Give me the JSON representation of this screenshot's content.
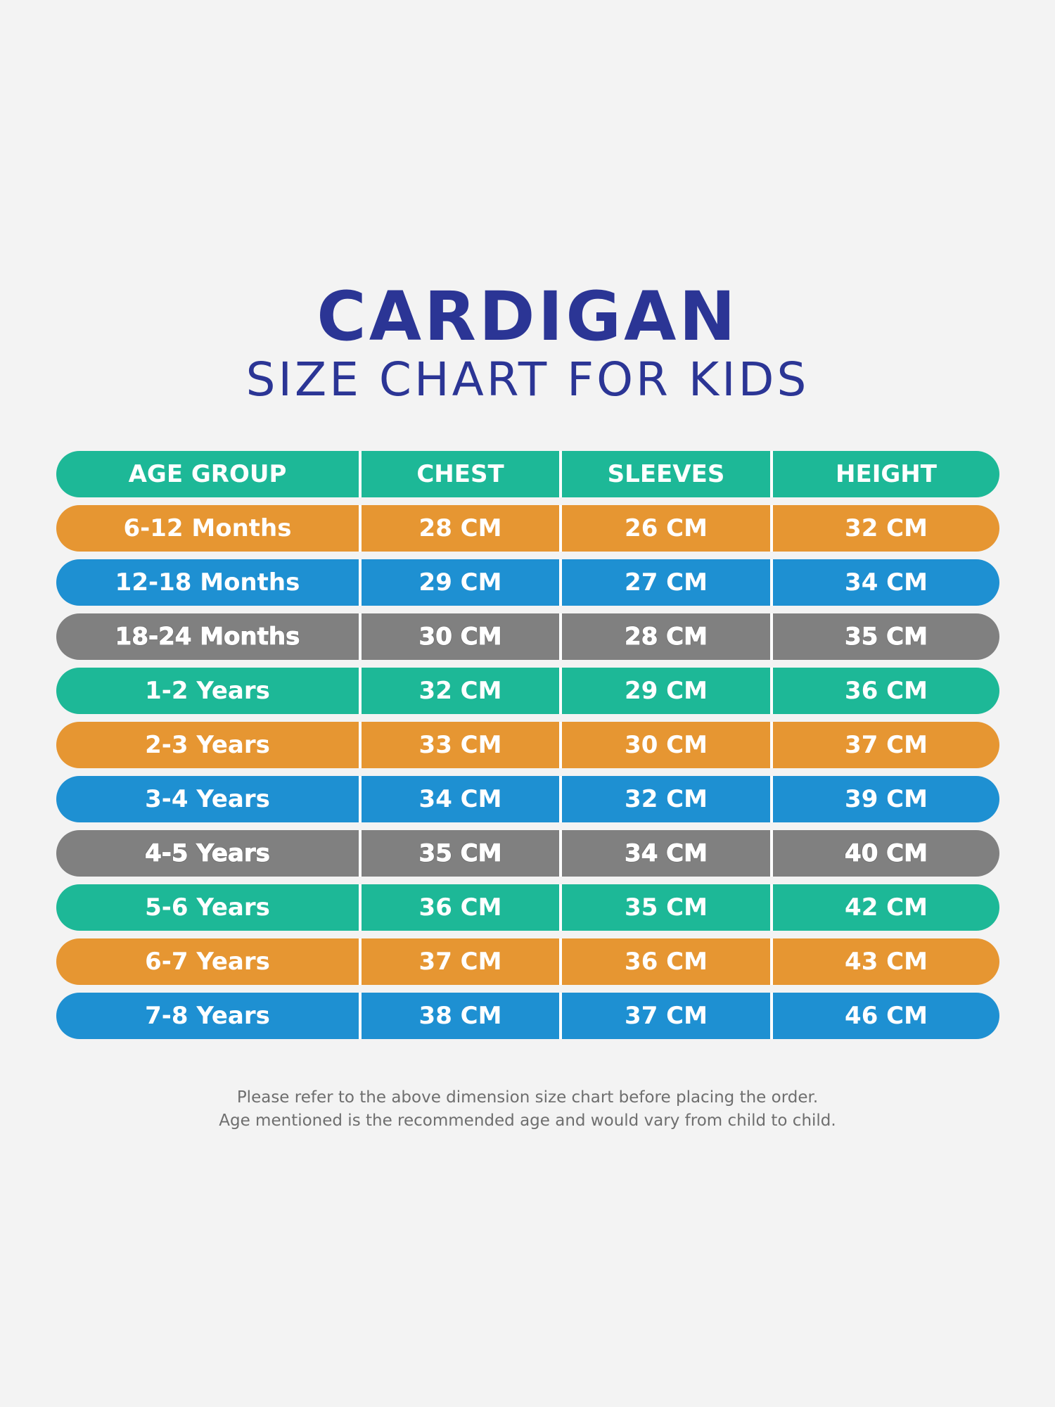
{
  "title": "CARDIGAN",
  "subtitle": "SIZE CHART FOR KIDS",
  "colors": {
    "teal": "#1db897",
    "orange": "#e69632",
    "blue": "#1e90d2",
    "gray": "#808080",
    "title": "#2b3595"
  },
  "table": {
    "header": {
      "color": "#1db897",
      "cells": [
        "AGE GROUP",
        "CHEST",
        "SLEEVES",
        "HEIGHT"
      ]
    },
    "rows": [
      {
        "color": "#e69632",
        "outlined": false,
        "cells": [
          "6-12 Months",
          "28 CM",
          "26 CM",
          "32 CM"
        ]
      },
      {
        "color": "#1e90d2",
        "outlined": false,
        "cells": [
          "12-18 Months",
          "29 CM",
          "27 CM",
          "34 CM"
        ]
      },
      {
        "color": "#808080",
        "outlined": true,
        "cells": [
          "18-24 Months",
          "30 CM",
          "28 CM",
          "35 CM"
        ]
      },
      {
        "color": "#1db897",
        "outlined": false,
        "cells": [
          "1-2 Years",
          "32 CM",
          "29 CM",
          "36 CM"
        ]
      },
      {
        "color": "#e69632",
        "outlined": false,
        "cells": [
          "2-3 Years",
          "33 CM",
          "30 CM",
          "37 CM"
        ]
      },
      {
        "color": "#1e90d2",
        "outlined": false,
        "cells": [
          "3-4 Years",
          "34 CM",
          "32 CM",
          "39 CM"
        ]
      },
      {
        "color": "#808080",
        "outlined": true,
        "cells": [
          "4-5 Years",
          "35 CM",
          "34 CM",
          "40 CM"
        ]
      },
      {
        "color": "#1db897",
        "outlined": false,
        "cells": [
          "5-6 Years",
          "36 CM",
          "35 CM",
          "42 CM"
        ]
      },
      {
        "color": "#e69632",
        "outlined": false,
        "cells": [
          "6-7 Years",
          "37 CM",
          "36 CM",
          "43 CM"
        ]
      },
      {
        "color": "#1e90d2",
        "outlined": false,
        "cells": [
          "7-8 Years",
          "38 CM",
          "37 CM",
          "46 CM"
        ]
      }
    ]
  },
  "footnote": {
    "line1": "Please refer to the above dimension size chart before placing the order.",
    "line2": "Age mentioned is the recommended age and would vary from child to child."
  }
}
